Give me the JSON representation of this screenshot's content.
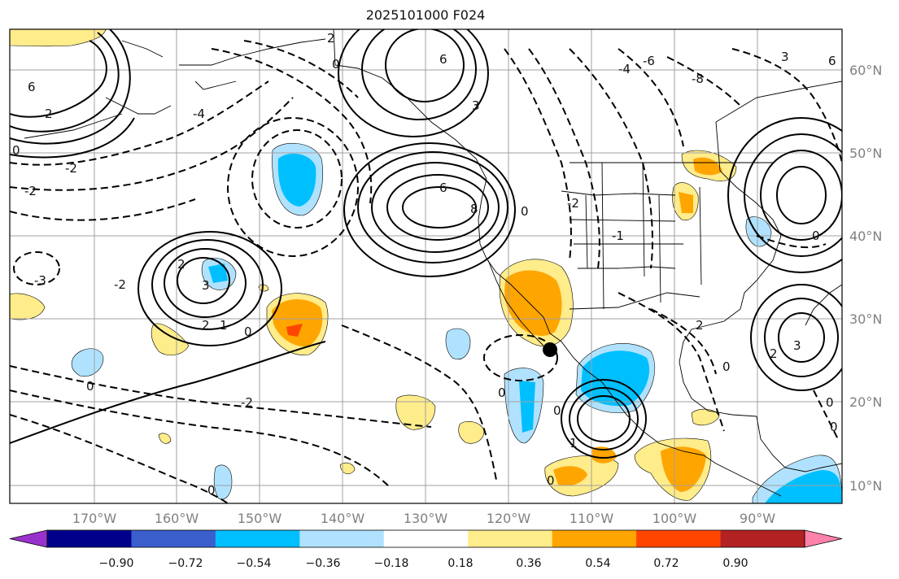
{
  "title": "2025101000 F024",
  "lon_labels": [
    "170°W",
    "160°W",
    "150°W",
    "140°W",
    "130°W",
    "120°W",
    "110°W",
    "100°W",
    "90°W"
  ],
  "lat_labels": [
    "60°N",
    "50°N",
    "40°N",
    "30°N",
    "20°N",
    "10°N"
  ],
  "colorbar": {
    "ticks": [
      "−0.90",
      "−0.72",
      "−0.54",
      "−0.36",
      "−0.18",
      "0.18",
      "0.36",
      "0.54",
      "0.72",
      "0.90"
    ],
    "colors": [
      "#9932cc",
      "#00008b",
      "#3a5fcd",
      "#00bfff",
      "#b0e2ff",
      "#ffffff",
      "#ffec8b",
      "#ffa500",
      "#ff4500",
      "#b22222",
      "#ff82ab"
    ]
  },
  "contour_labels": [
    "0",
    "2",
    "3",
    "6",
    "8",
    "-2",
    "-3",
    "-4",
    "-6",
    "-8",
    "1",
    "-1"
  ],
  "marker": "storm-location"
}
